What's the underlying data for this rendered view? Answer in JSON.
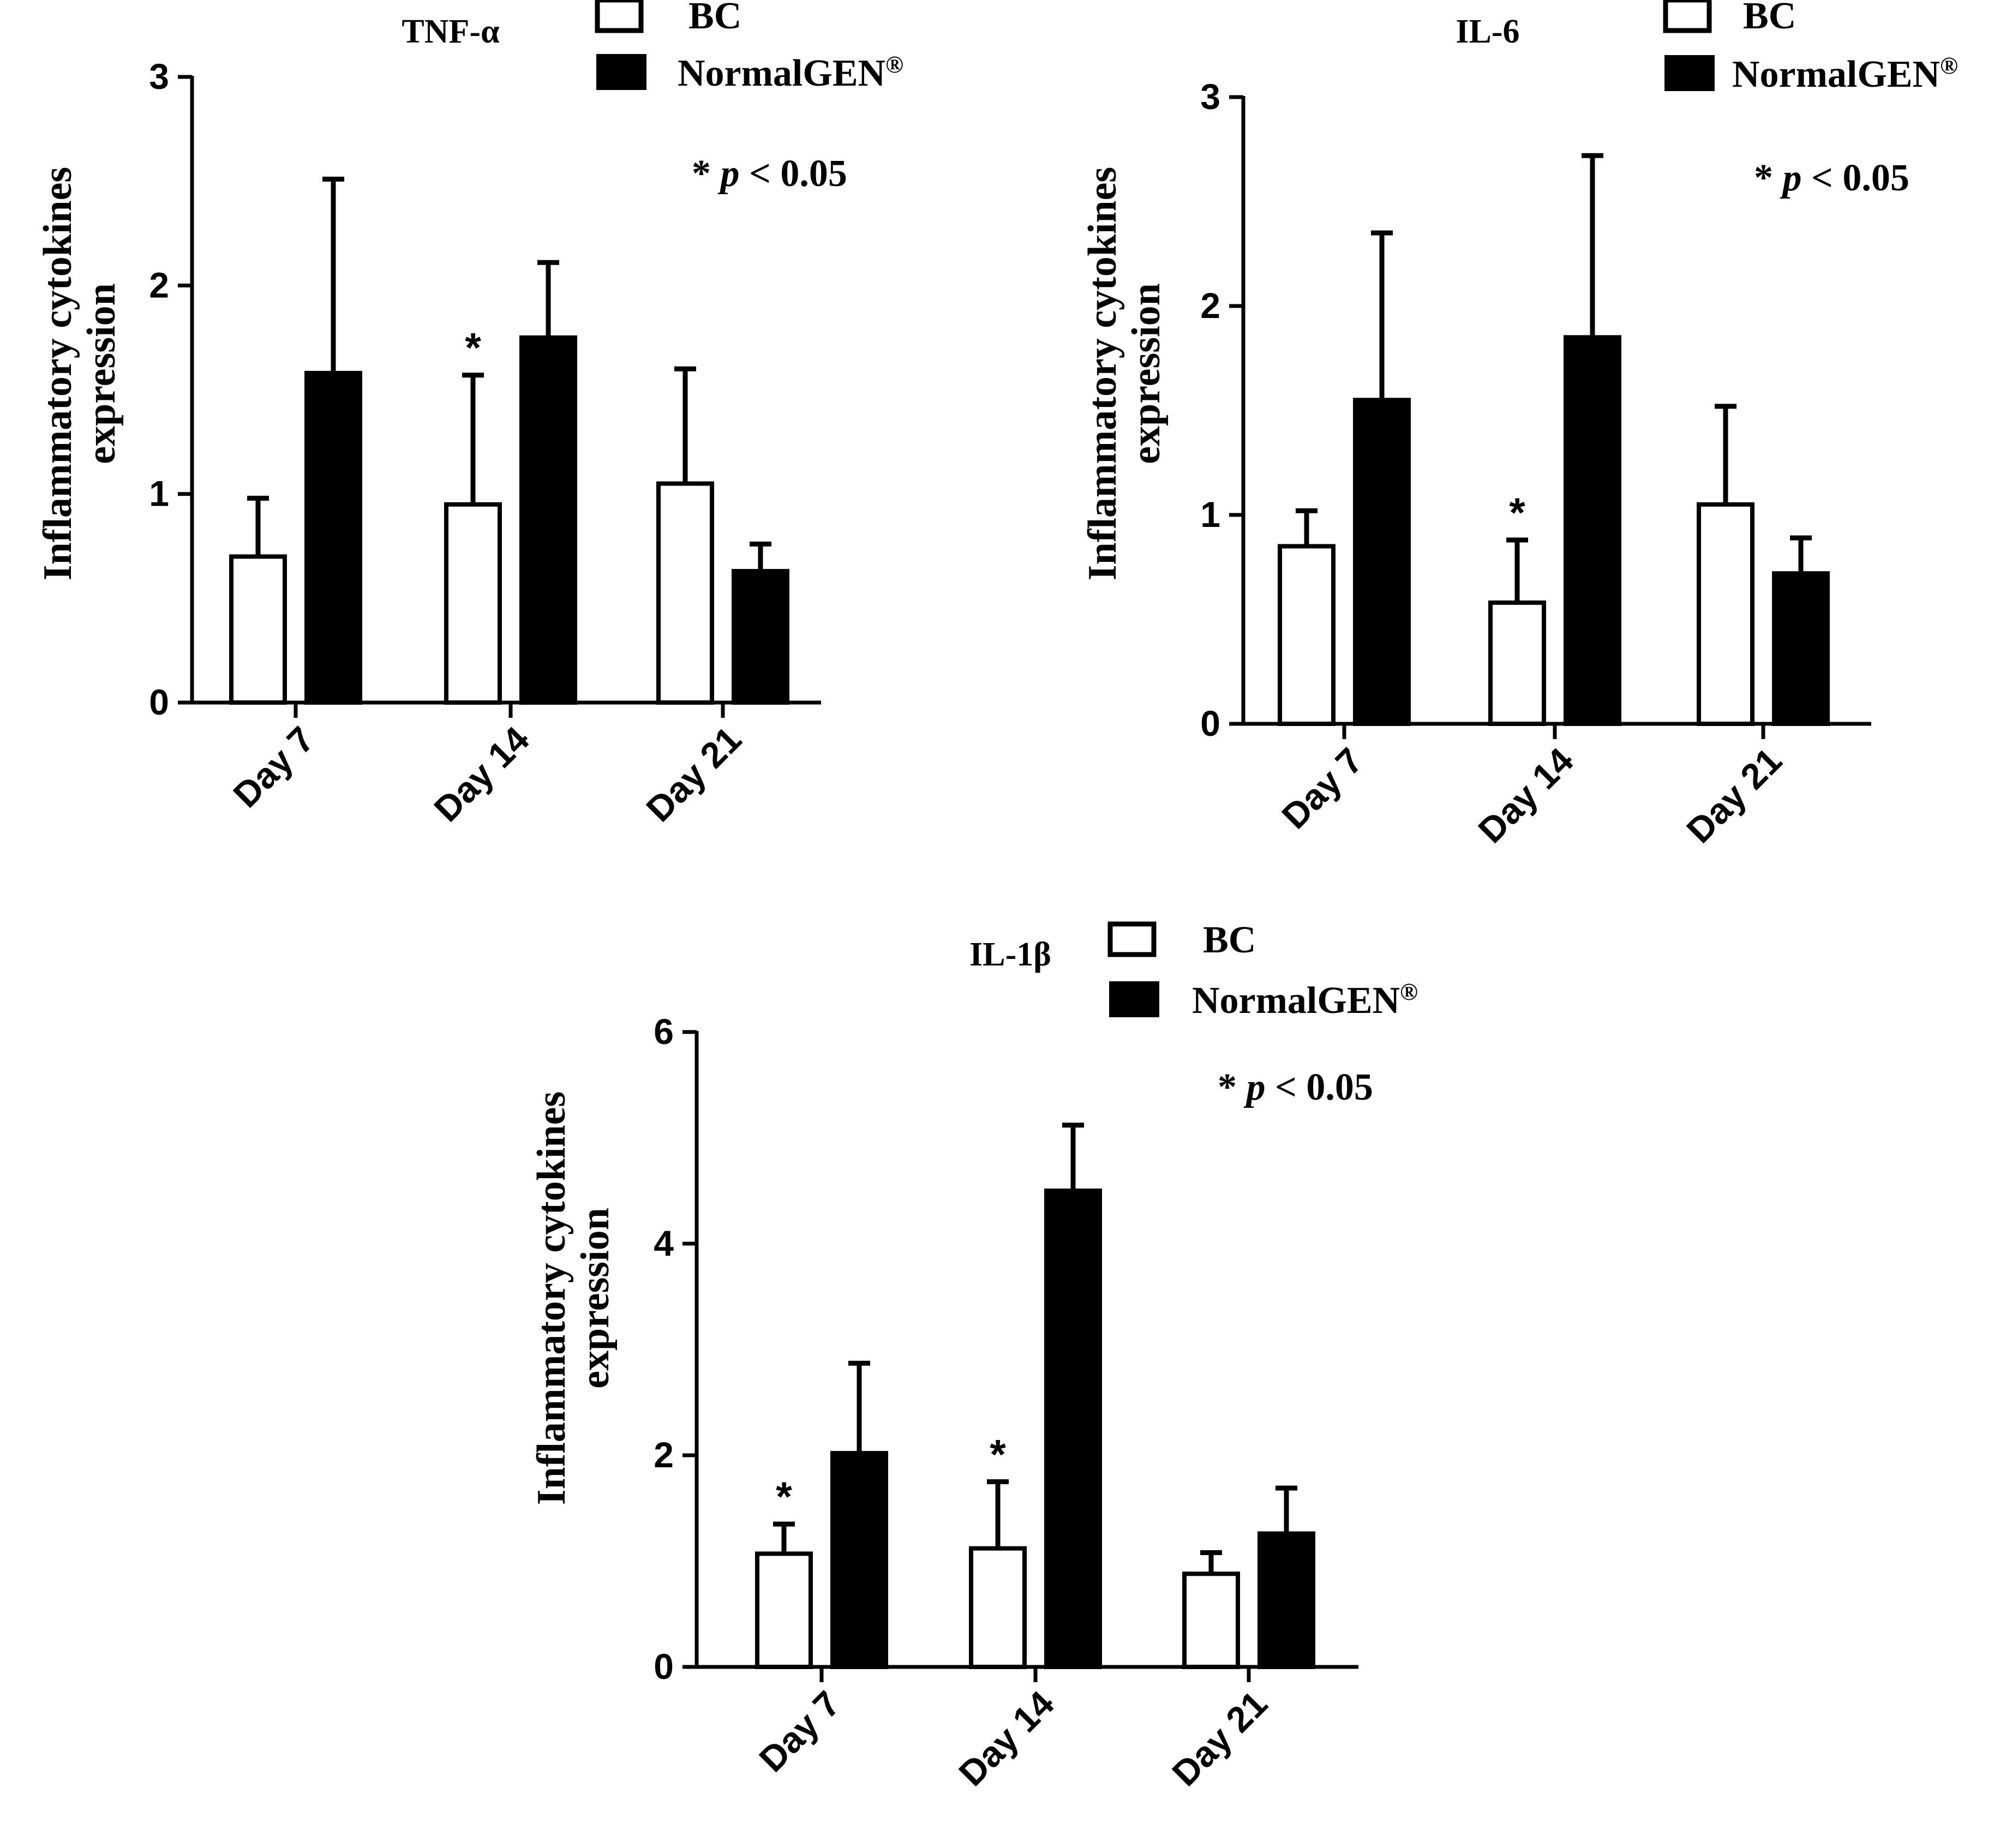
{
  "figure": {
    "legend_labels": {
      "bc": "BC",
      "normalgen": "NormalGEN",
      "normalgen_mark": "®"
    },
    "significance_note": {
      "star": "* ",
      "p": "p",
      "rest": " < 0.05"
    },
    "significance_marker": "*",
    "ylabel_line1": "Inflammatory cytokines",
    "ylabel_line2": "expression",
    "colors": {
      "bc_fill": "#ffffff",
      "normalgen_fill": "#000000",
      "stroke": "#000000"
    }
  },
  "chart_data": [
    {
      "type": "bar",
      "title": "TNF-α",
      "xlabel": "",
      "ylabel": "Inflammatory cytokines expression",
      "categories": [
        "Day 7",
        "Day 14",
        "Day 21"
      ],
      "ylim": [
        0,
        3
      ],
      "yticks": [
        0,
        1,
        2,
        3
      ],
      "series": [
        {
          "name": "BC",
          "values": [
            0.7,
            0.95,
            1.05
          ],
          "errors": [
            0.28,
            0.62,
            0.55
          ],
          "significant": [
            false,
            true,
            false
          ]
        },
        {
          "name": "NormalGEN®",
          "values": [
            1.58,
            1.75,
            0.63
          ],
          "errors": [
            0.93,
            0.36,
            0.13
          ],
          "significant": [
            false,
            false,
            false
          ]
        }
      ],
      "legend": "top-right",
      "grid": false
    },
    {
      "type": "bar",
      "title": "IL-6",
      "xlabel": "",
      "ylabel": "Inflammatory cytokines expression",
      "categories": [
        "Day 7",
        "Day 14",
        "Day 21"
      ],
      "ylim": [
        0,
        3
      ],
      "yticks": [
        0,
        1,
        2,
        3
      ],
      "series": [
        {
          "name": "BC",
          "values": [
            0.85,
            0.58,
            1.05
          ],
          "errors": [
            0.17,
            0.3,
            0.47
          ],
          "significant": [
            false,
            true,
            false
          ]
        },
        {
          "name": "NormalGEN®",
          "values": [
            1.55,
            1.85,
            0.72
          ],
          "errors": [
            0.8,
            0.87,
            0.17
          ],
          "significant": [
            false,
            false,
            false
          ]
        }
      ],
      "legend": "top-right",
      "grid": false
    },
    {
      "type": "bar",
      "title": "IL-1β",
      "xlabel": "",
      "ylabel": "Inflammatory cytokines expression",
      "categories": [
        "Day 7",
        "Day 14",
        "Day 21"
      ],
      "ylim": [
        0,
        6
      ],
      "yticks": [
        0,
        2,
        4,
        6
      ],
      "series": [
        {
          "name": "BC",
          "values": [
            1.07,
            1.12,
            0.88
          ],
          "errors": [
            0.28,
            0.63,
            0.2
          ],
          "significant": [
            true,
            true,
            false
          ]
        },
        {
          "name": "NormalGEN®",
          "values": [
            2.02,
            4.5,
            1.26
          ],
          "errors": [
            0.85,
            0.62,
            0.43
          ],
          "significant": [
            false,
            false,
            false
          ]
        }
      ],
      "legend": "top-right",
      "grid": false
    }
  ]
}
